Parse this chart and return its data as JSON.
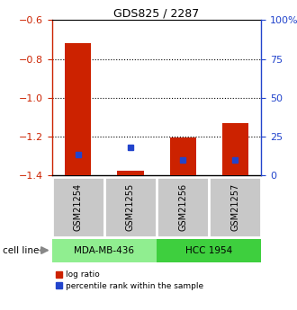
{
  "title": "GDS825 / 2287",
  "samples": [
    "GSM21254",
    "GSM21255",
    "GSM21256",
    "GSM21257"
  ],
  "log_ratios": [
    -0.72,
    -1.375,
    -1.205,
    -1.13
  ],
  "percentile_ranks": [
    13,
    18,
    10,
    10
  ],
  "baseline": -1.4,
  "ylim_left": [
    -1.4,
    -0.6
  ],
  "ylim_right": [
    0,
    100
  ],
  "yticks_left": [
    -1.4,
    -1.2,
    -1.0,
    -0.8,
    -0.6
  ],
  "yticks_right": [
    0,
    25,
    50,
    75,
    100
  ],
  "groups": [
    {
      "label": "MDA-MB-436",
      "samples": [
        0,
        1
      ],
      "color": "#90ee90"
    },
    {
      "label": "HCC 1954",
      "samples": [
        2,
        3
      ],
      "color": "#3ecf3e"
    }
  ],
  "cell_line_label": "cell line",
  "bar_color_red": "#cc2200",
  "bar_color_blue": "#2244cc",
  "bg_color_samples": "#c8c8c8",
  "legend_red": "log ratio",
  "legend_blue": "percentile rank within the sample",
  "dotted_line_color": "black",
  "axis_left_color": "#cc2200",
  "axis_right_color": "#2244cc",
  "bar_width": 0.5
}
